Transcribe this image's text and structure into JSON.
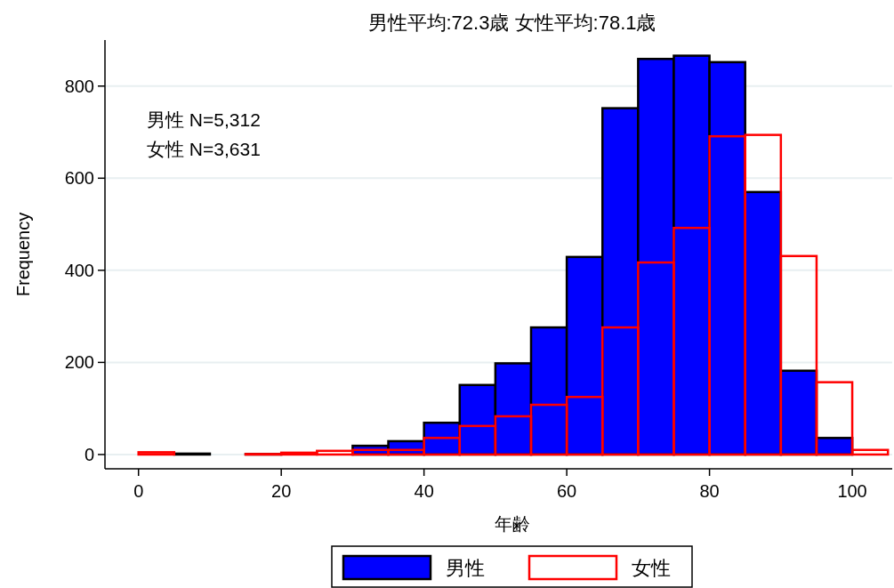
{
  "chart_data": {
    "type": "histogram",
    "title": "男性平均:72.3歳 女性平均:78.1歳",
    "xlabel": "年齢",
    "ylabel": "Frequency",
    "bins": [
      0,
      5,
      10,
      15,
      20,
      25,
      30,
      35,
      40,
      45,
      50,
      55,
      60,
      65,
      70,
      75,
      80,
      85,
      90,
      95,
      100,
      105
    ],
    "series": [
      {
        "name": "男性",
        "color": "#0000ff",
        "values": [
          null,
          2,
          0,
          1,
          null,
          null,
          19,
          29,
          69,
          151,
          198,
          276,
          429,
          752,
          859,
          866,
          852,
          570,
          182,
          36,
          null
        ]
      },
      {
        "name": "女性",
        "color": "#ff0000",
        "values": [
          5,
          0,
          0,
          1,
          4,
          8,
          10,
          10,
          36,
          62,
          83,
          108,
          125,
          276,
          417,
          492,
          691,
          694,
          431,
          157,
          10
        ]
      }
    ],
    "xlim": [
      -4.7,
      105.6
    ],
    "ylim": [
      -31,
      900
    ],
    "xticks": [
      0,
      20,
      40,
      60,
      80,
      100
    ],
    "yticks": [
      0,
      200,
      400,
      600,
      800
    ],
    "grid": "y",
    "legend": "bottom",
    "annotations": [
      "男性 N=5,312",
      "女性 N=3,631"
    ]
  }
}
